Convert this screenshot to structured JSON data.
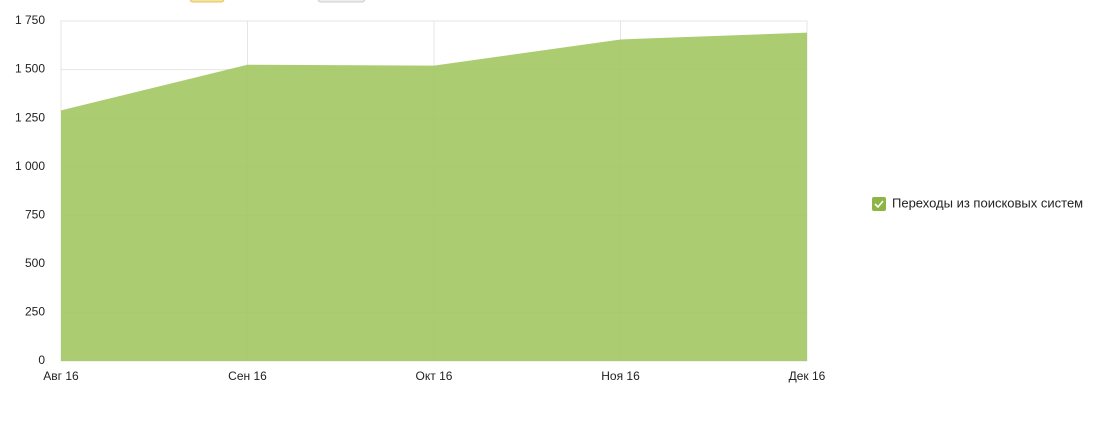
{
  "chart_data": {
    "type": "area",
    "categories": [
      "Авг 16",
      "Сен 16",
      "Окт 16",
      "Ноя 16",
      "Дек 16"
    ],
    "series": [
      {
        "name": "Переходы из поисковых систем",
        "color": "#a3c762",
        "values": [
          1290,
          1525,
          1520,
          1655,
          1690
        ]
      }
    ],
    "ylim": [
      0,
      1750
    ],
    "yticks": [
      0,
      250,
      500,
      750,
      {
        "value": 1000,
        "label": "1 000"
      },
      {
        "value": 1250,
        "label": "1 250"
      },
      {
        "value": 1500,
        "label": "1 500"
      },
      {
        "value": 1750,
        "label": "1 750"
      }
    ],
    "grid": true,
    "legend": "right"
  }
}
